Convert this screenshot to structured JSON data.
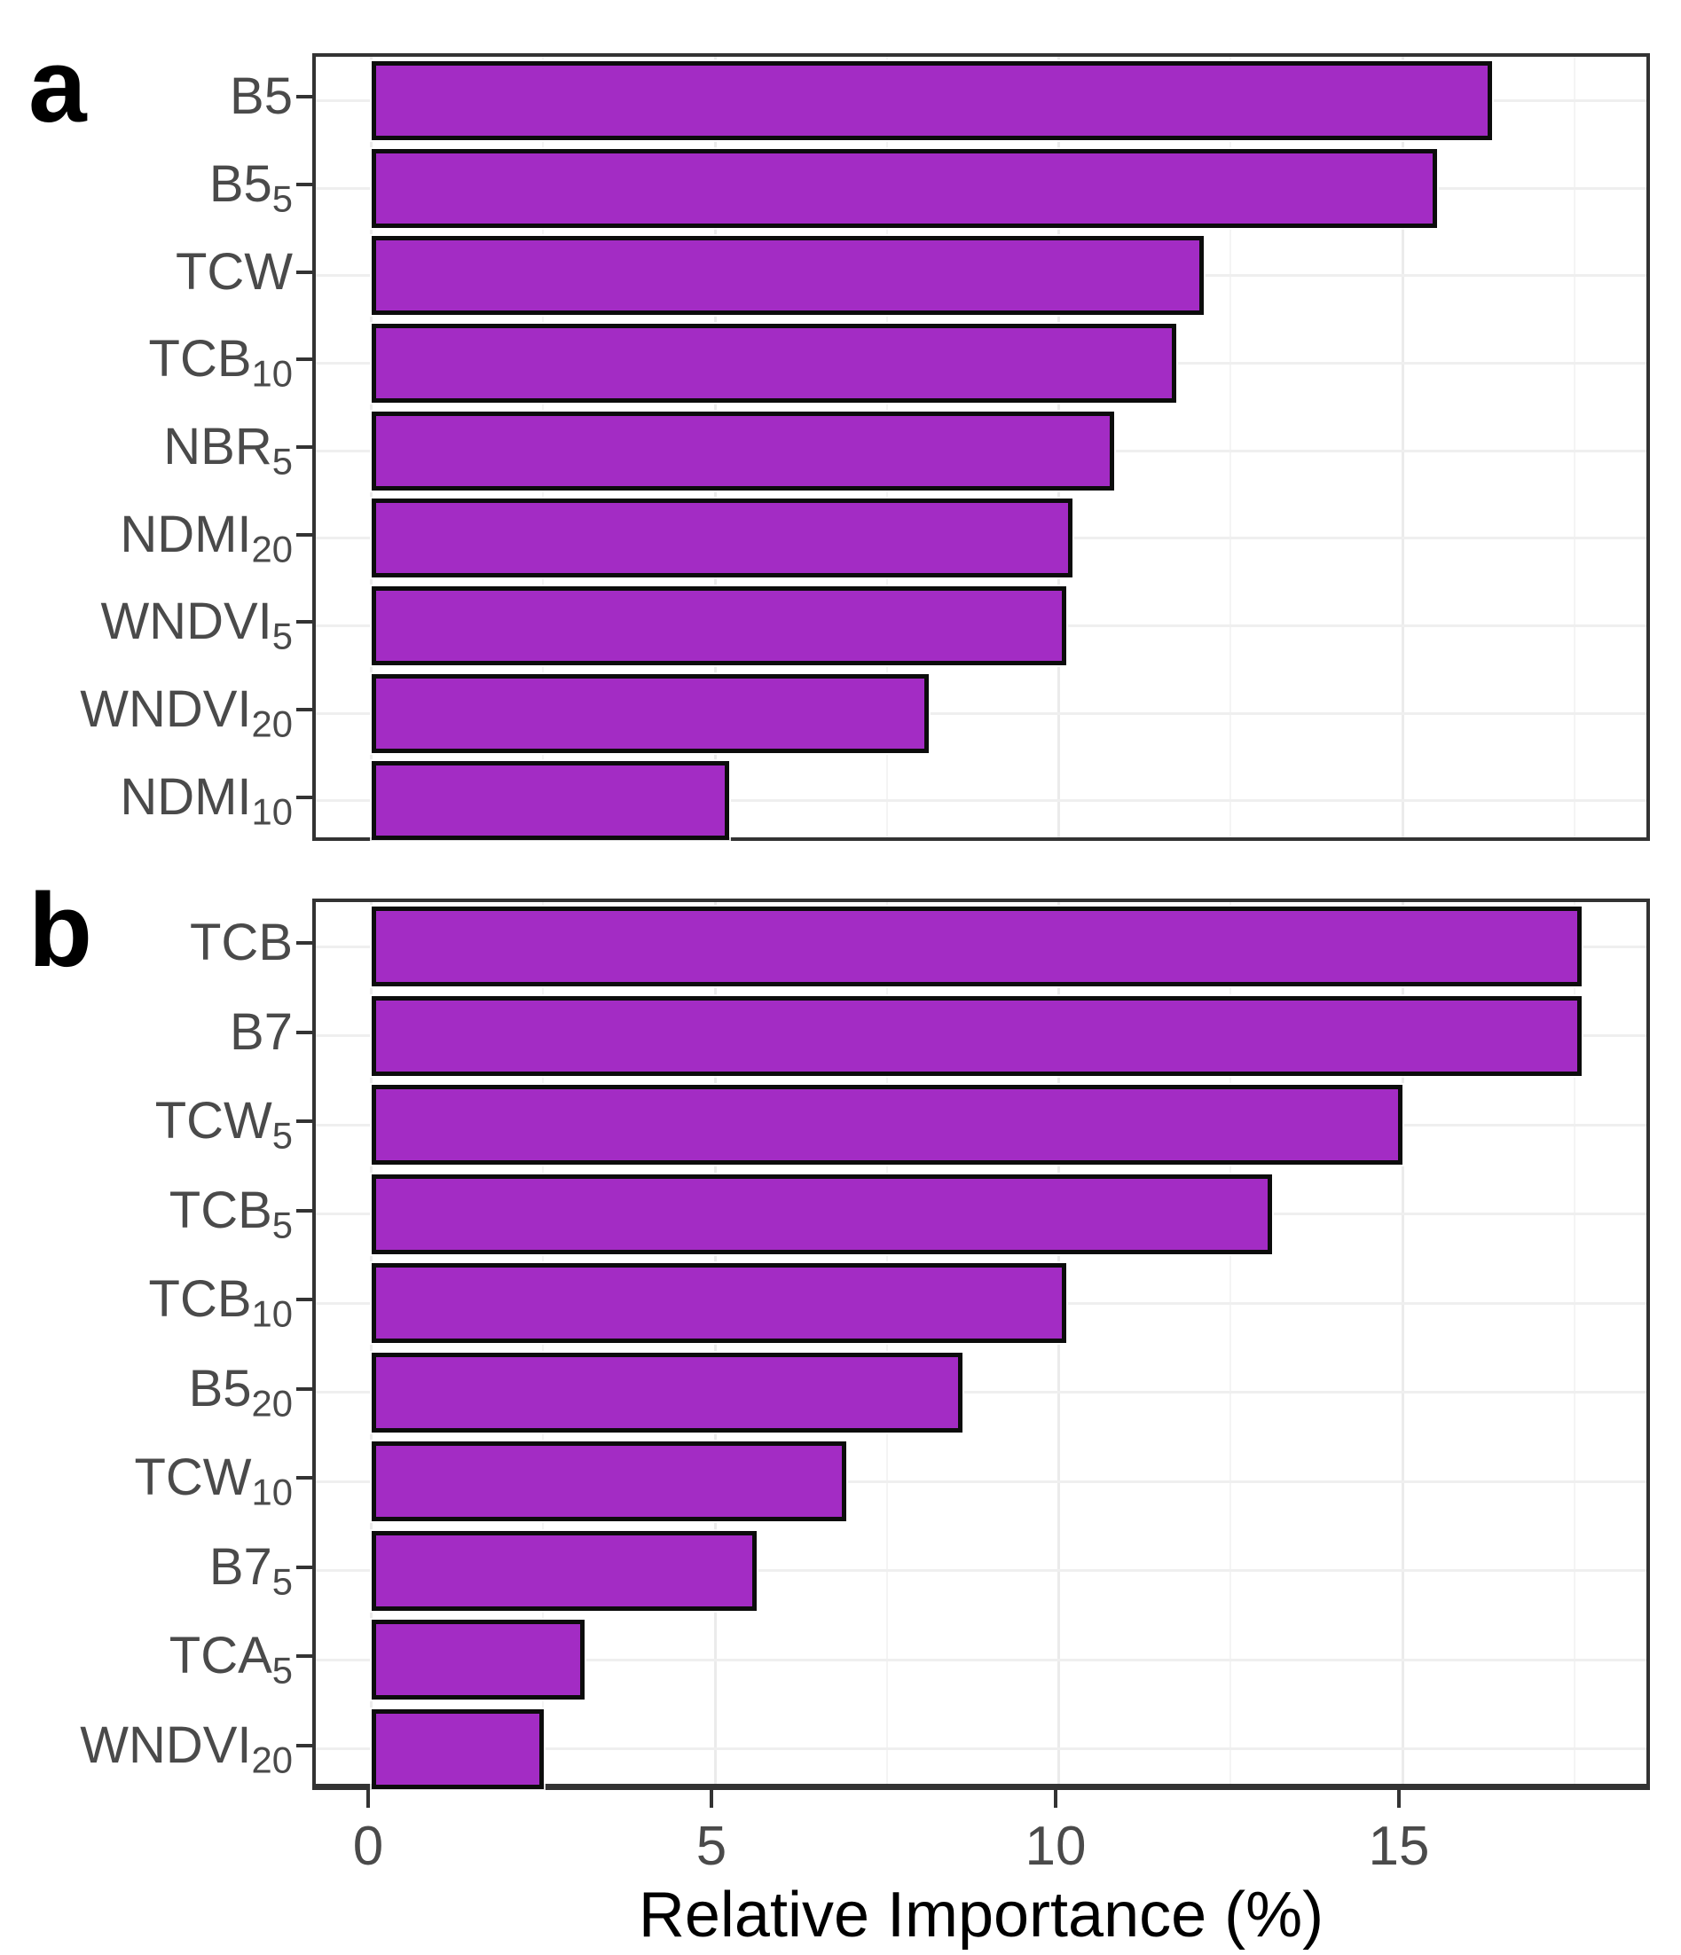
{
  "figure": {
    "axis_title": "Relative Importance (%)",
    "panel_letters": {
      "a": "a",
      "b": "b"
    },
    "x_tick_labels": [
      "0",
      "5",
      "10",
      "15"
    ]
  },
  "colors": {
    "bar_fill": "#a32cc4",
    "bar_border": "#0c0c0c",
    "panel_border": "#333333",
    "gridline_major": "#ebebeb",
    "gridline_minor": "#f4f4f4",
    "tick_label": "#4a4a4a"
  },
  "chart_data": [
    {
      "type": "bar",
      "orientation": "horizontal",
      "panel": "a",
      "xlabel": "Relative Importance (%)",
      "x_ticks": [
        0,
        5,
        10,
        15
      ],
      "x_minor_ticks": [
        2.5,
        7.5,
        12.5,
        17.5
      ],
      "xlim": [
        -0.81,
        18.65
      ],
      "grid": true,
      "legend": "none",
      "categories": [
        {
          "base": "B5",
          "sub": ""
        },
        {
          "base": "B5",
          "sub": "5"
        },
        {
          "base": "TCW",
          "sub": ""
        },
        {
          "base": "TCB",
          "sub": "10"
        },
        {
          "base": "NBR",
          "sub": "5"
        },
        {
          "base": "NDMI",
          "sub": "20"
        },
        {
          "base": "WNDVI",
          "sub": "5"
        },
        {
          "base": "WNDVI",
          "sub": "20"
        },
        {
          "base": "NDMI",
          "sub": "10"
        }
      ],
      "values": [
        16.3,
        15.5,
        12.1,
        11.7,
        10.8,
        10.2,
        10.1,
        8.1,
        5.2
      ]
    },
    {
      "type": "bar",
      "orientation": "horizontal",
      "panel": "b",
      "xlabel": "Relative Importance (%)",
      "x_ticks": [
        0,
        5,
        10,
        15
      ],
      "x_minor_ticks": [
        2.5,
        7.5,
        12.5,
        17.5
      ],
      "xlim": [
        -0.81,
        18.65
      ],
      "grid": true,
      "legend": "none",
      "categories": [
        {
          "base": "TCB",
          "sub": ""
        },
        {
          "base": "B7",
          "sub": ""
        },
        {
          "base": "TCW",
          "sub": "5"
        },
        {
          "base": "TCB",
          "sub": "5"
        },
        {
          "base": "TCB",
          "sub": "10"
        },
        {
          "base": "B5",
          "sub": "20"
        },
        {
          "base": "TCW",
          "sub": "10"
        },
        {
          "base": "B7",
          "sub": "5"
        },
        {
          "base": "TCA",
          "sub": "5"
        },
        {
          "base": "WNDVI",
          "sub": "20"
        }
      ],
      "values": [
        17.6,
        17.6,
        15.0,
        13.1,
        10.1,
        8.6,
        6.9,
        5.6,
        3.1,
        2.5
      ]
    }
  ]
}
